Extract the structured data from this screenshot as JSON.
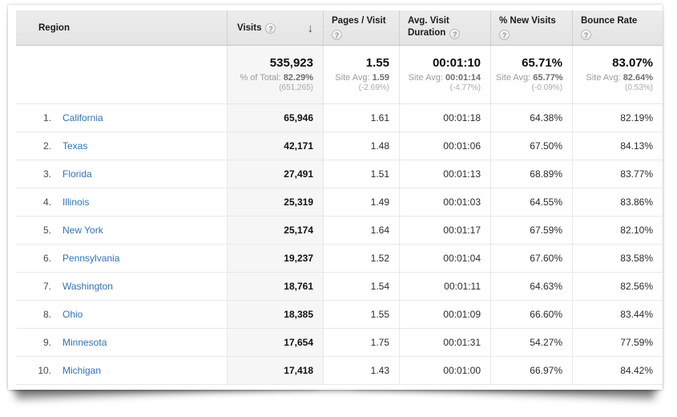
{
  "colors": {
    "link_blue": "#3272b5",
    "header_bg": "#e8e8e8",
    "shaded_column_bg": "#f6f6f6",
    "muted_text": "#9c9c9c"
  },
  "icons": {
    "help": "?",
    "sort_descending": "↓"
  },
  "table": {
    "columns": [
      {
        "label": "Region"
      },
      {
        "label": "Visits"
      },
      {
        "label": "Pages / Visit"
      },
      {
        "label": "Avg. Visit Duration"
      },
      {
        "label": "% New Visits"
      },
      {
        "label": "Bounce Rate"
      }
    ],
    "summary": [
      {
        "value": "535,923",
        "sub_label": "% of Total:",
        "sub_value": "82.29%",
        "delta": "(651,265)"
      },
      {
        "value": "1.55",
        "sub_label": "Site Avg:",
        "sub_value": "1.59",
        "delta": "(-2.69%)"
      },
      {
        "value": "00:01:10",
        "sub_label": "Site Avg:",
        "sub_value": "00:01:14",
        "delta": "(-4.77%)"
      },
      {
        "value": "65.71%",
        "sub_label": "Site Avg:",
        "sub_value": "65.77%",
        "delta": "(-0.09%)"
      },
      {
        "value": "83.07%",
        "sub_label": "Site Avg:",
        "sub_value": "82.64%",
        "delta": "(0.53%)"
      }
    ],
    "rows": [
      {
        "rank": "1.",
        "region": "California",
        "visits": "65,946",
        "pages_per_visit": "1.61",
        "avg_duration": "00:01:18",
        "new_visits": "64.38%",
        "bounce_rate": "82.19%"
      },
      {
        "rank": "2.",
        "region": "Texas",
        "visits": "42,171",
        "pages_per_visit": "1.48",
        "avg_duration": "00:01:06",
        "new_visits": "67.50%",
        "bounce_rate": "84.13%"
      },
      {
        "rank": "3.",
        "region": "Florida",
        "visits": "27,491",
        "pages_per_visit": "1.51",
        "avg_duration": "00:01:13",
        "new_visits": "68.89%",
        "bounce_rate": "83.77%"
      },
      {
        "rank": "4.",
        "region": "Illinois",
        "visits": "25,319",
        "pages_per_visit": "1.49",
        "avg_duration": "00:01:03",
        "new_visits": "64.55%",
        "bounce_rate": "83.86%"
      },
      {
        "rank": "5.",
        "region": "New York",
        "visits": "25,174",
        "pages_per_visit": "1.64",
        "avg_duration": "00:01:17",
        "new_visits": "67.59%",
        "bounce_rate": "82.10%"
      },
      {
        "rank": "6.",
        "region": "Pennsylvania",
        "visits": "19,237",
        "pages_per_visit": "1.52",
        "avg_duration": "00:01:04",
        "new_visits": "67.60%",
        "bounce_rate": "83.58%"
      },
      {
        "rank": "7.",
        "region": "Washington",
        "visits": "18,761",
        "pages_per_visit": "1.54",
        "avg_duration": "00:01:11",
        "new_visits": "64.63%",
        "bounce_rate": "82.56%"
      },
      {
        "rank": "8.",
        "region": "Ohio",
        "visits": "18,385",
        "pages_per_visit": "1.55",
        "avg_duration": "00:01:09",
        "new_visits": "66.60%",
        "bounce_rate": "83.44%"
      },
      {
        "rank": "9.",
        "region": "Minnesota",
        "visits": "17,654",
        "pages_per_visit": "1.75",
        "avg_duration": "00:01:31",
        "new_visits": "54.27%",
        "bounce_rate": "77.59%"
      },
      {
        "rank": "10.",
        "region": "Michigan",
        "visits": "17,418",
        "pages_per_visit": "1.43",
        "avg_duration": "00:01:00",
        "new_visits": "66.97%",
        "bounce_rate": "84.42%"
      }
    ]
  }
}
